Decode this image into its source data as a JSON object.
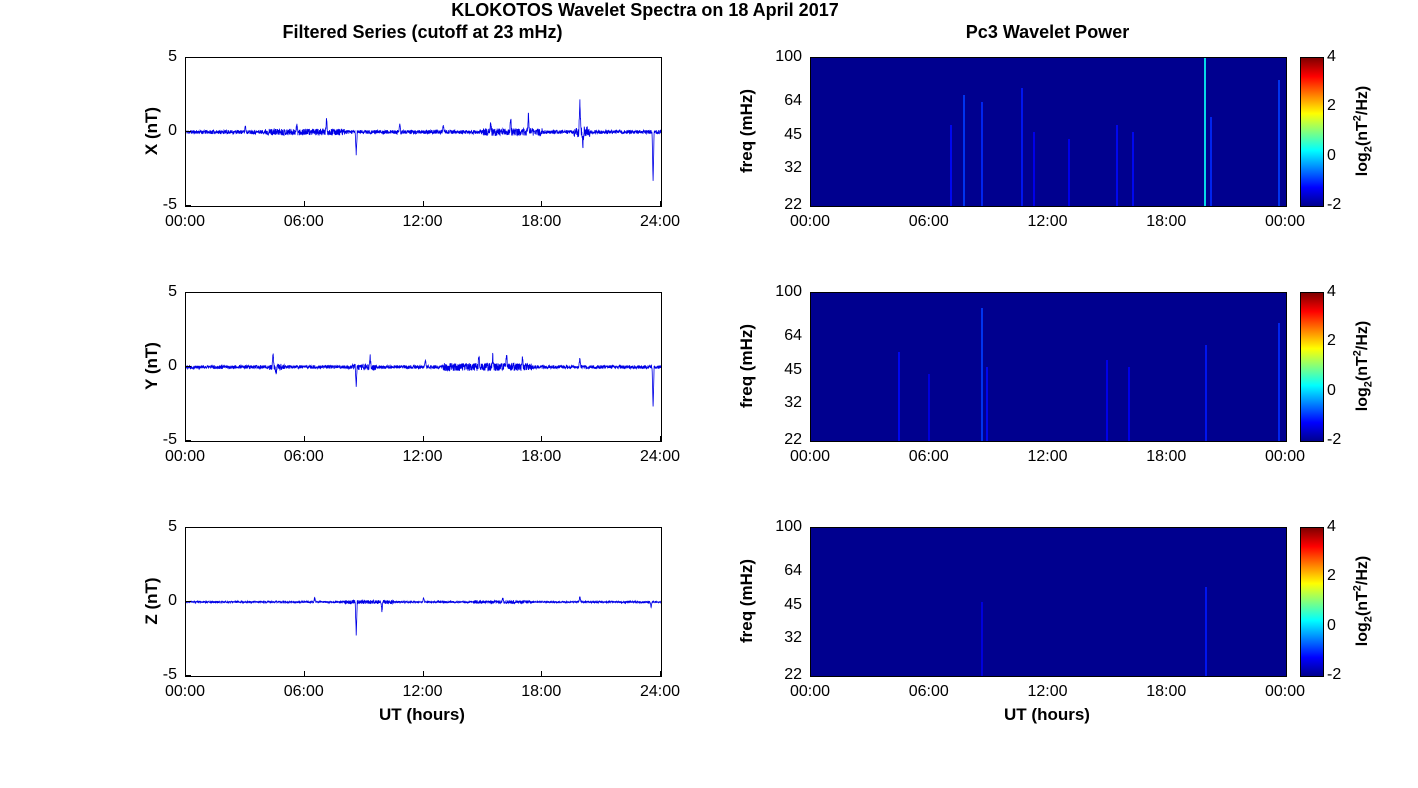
{
  "figure": {
    "title": "KLOKOTOS Wavelet Spectra on 18 April 2017",
    "background": "#ffffff"
  },
  "chart_data": [
    {
      "type": "line",
      "title": "Filtered Series (cutoff at 23 mHz)",
      "xlabel": "UT (hours)",
      "x_ticks": [
        "00:00",
        "06:00",
        "12:00",
        "18:00",
        "24:00"
      ],
      "x_range_hours": [
        0,
        24
      ],
      "ylim": [
        -5,
        5
      ],
      "y_ticks": [
        5,
        0,
        -5
      ],
      "line_color": "#0000e6",
      "grid": false,
      "panels": [
        {
          "ylabel": "X (nT)",
          "noise_amp": 0.13,
          "seed": 11,
          "bursts": [
            {
              "t0": 4.0,
              "t1": 8.0,
              "m": 1.7
            },
            {
              "t0": 15.0,
              "t1": 18.0,
              "m": 2.0
            },
            {
              "t0": 19.6,
              "t1": 20.4,
              "m": 3.0
            }
          ],
          "spikes": [
            {
              "t": 3.0,
              "a": 0.45
            },
            {
              "t": 5.6,
              "a": 0.5
            },
            {
              "t": 7.1,
              "a": 0.9
            },
            {
              "t": 8.6,
              "a": -1.6
            },
            {
              "t": 10.8,
              "a": 0.5
            },
            {
              "t": 13.0,
              "a": 0.45
            },
            {
              "t": 15.4,
              "a": 0.6
            },
            {
              "t": 16.4,
              "a": 1.0
            },
            {
              "t": 17.3,
              "a": 1.2
            },
            {
              "t": 19.9,
              "a": 2.3
            },
            {
              "t": 20.05,
              "a": -0.9
            },
            {
              "t": 23.6,
              "a": -3.6
            }
          ]
        },
        {
          "ylabel": "Y (nT)",
          "noise_amp": 0.12,
          "seed": 22,
          "bursts": [
            {
              "t0": 4.2,
              "t1": 5.0,
              "m": 1.8
            },
            {
              "t0": 8.4,
              "t1": 9.6,
              "m": 1.8
            },
            {
              "t0": 13.0,
              "t1": 17.5,
              "m": 2.2
            }
          ],
          "spikes": [
            {
              "t": 4.4,
              "a": 0.9
            },
            {
              "t": 4.55,
              "a": -0.5
            },
            {
              "t": 8.6,
              "a": -1.3
            },
            {
              "t": 9.3,
              "a": 0.9
            },
            {
              "t": 12.1,
              "a": 0.5
            },
            {
              "t": 14.8,
              "a": 0.8
            },
            {
              "t": 15.5,
              "a": 0.8
            },
            {
              "t": 16.2,
              "a": 0.9
            },
            {
              "t": 17.0,
              "a": 0.7
            },
            {
              "t": 19.9,
              "a": 0.6
            },
            {
              "t": 23.6,
              "a": -2.9
            }
          ]
        },
        {
          "ylabel": "Z (nT)",
          "noise_amp": 0.06,
          "seed": 33,
          "bursts": [
            {
              "t0": 8.0,
              "t1": 10.5,
              "m": 2.2
            },
            {
              "t0": 14.5,
              "t1": 17.5,
              "m": 1.8
            }
          ],
          "spikes": [
            {
              "t": 6.5,
              "a": 0.3
            },
            {
              "t": 8.6,
              "a": -2.3
            },
            {
              "t": 9.9,
              "a": -0.6
            },
            {
              "t": 12.0,
              "a": 0.3
            },
            {
              "t": 16.0,
              "a": 0.3
            },
            {
              "t": 19.9,
              "a": 0.4
            },
            {
              "t": 23.5,
              "a": -0.35
            }
          ]
        }
      ]
    },
    {
      "type": "heatmap",
      "title": "Pc3 Wavelet Power",
      "xlabel": "UT (hours)",
      "x_ticks": [
        "00:00",
        "06:00",
        "12:00",
        "18:00",
        "00:00"
      ],
      "x_range_hours": [
        0,
        24
      ],
      "ylabel": "freq (mHz)",
      "y_ticks": [
        100,
        64,
        45,
        32,
        22
      ],
      "y_scale": "log",
      "ylim_mhz": [
        22,
        100
      ],
      "background_power": -2,
      "background_color": "#00008f",
      "colorbar": {
        "ticks": [
          4,
          2,
          0,
          -2
        ],
        "range": [
          -2,
          4
        ],
        "colormap": "jet",
        "anchor_colors": [
          "#00008f",
          "#0000ff",
          "#00ffff",
          "#ffff00",
          "#ff0000",
          "#800000"
        ],
        "anchor_stops": [
          0,
          0.125,
          0.375,
          0.625,
          0.875,
          1
        ],
        "label_parts": {
          "prefix": "log",
          "sub": "2",
          "mid": "(nT",
          "sup": "2",
          "suffix": "/Hz)"
        }
      },
      "panels": [
        {
          "component": "X",
          "streaks": [
            {
              "t": 7.0,
              "p": -1.2,
              "h": 0.55
            },
            {
              "t": 7.7,
              "p": -0.9,
              "h": 0.75
            },
            {
              "t": 8.6,
              "p": -1.0,
              "h": 0.7
            },
            {
              "t": 10.6,
              "p": -1.1,
              "h": 0.8
            },
            {
              "t": 11.2,
              "p": -1.3,
              "h": 0.5
            },
            {
              "t": 13.0,
              "p": -1.3,
              "h": 0.45
            },
            {
              "t": 15.4,
              "p": -1.2,
              "h": 0.55
            },
            {
              "t": 16.2,
              "p": -1.2,
              "h": 0.5
            },
            {
              "t": 19.85,
              "p": 0.3,
              "h": 1.0
            },
            {
              "t": 20.15,
              "p": -1.0,
              "h": 0.6
            },
            {
              "t": 23.6,
              "p": -0.9,
              "h": 0.85
            }
          ]
        },
        {
          "component": "Y",
          "streaks": [
            {
              "t": 4.4,
              "p": -1.2,
              "h": 0.6
            },
            {
              "t": 5.9,
              "p": -1.4,
              "h": 0.45
            },
            {
              "t": 8.6,
              "p": -0.9,
              "h": 0.9
            },
            {
              "t": 8.85,
              "p": -1.2,
              "h": 0.5
            },
            {
              "t": 14.9,
              "p": -1.3,
              "h": 0.55
            },
            {
              "t": 16.0,
              "p": -1.3,
              "h": 0.5
            },
            {
              "t": 19.9,
              "p": -1.1,
              "h": 0.65
            },
            {
              "t": 23.6,
              "p": -1.0,
              "h": 0.8
            }
          ]
        },
        {
          "component": "Z",
          "streaks": [
            {
              "t": 8.6,
              "p": -1.4,
              "h": 0.5
            },
            {
              "t": 19.9,
              "p": -1.1,
              "h": 0.6
            }
          ]
        }
      ]
    }
  ]
}
